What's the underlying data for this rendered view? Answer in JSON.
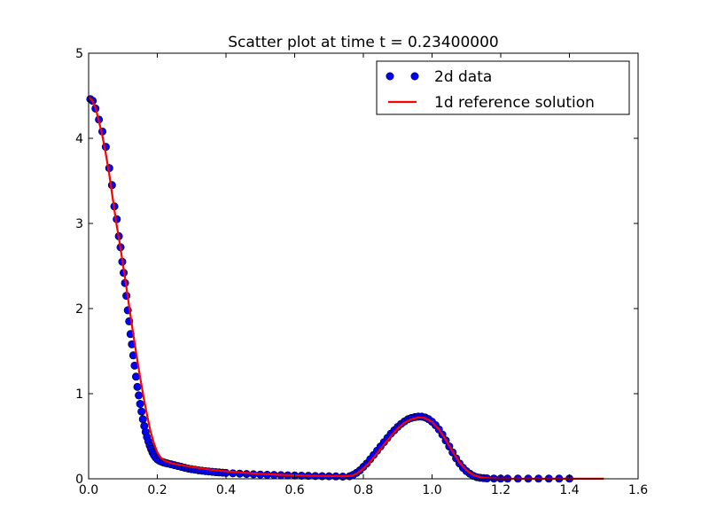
{
  "chart_data": {
    "type": "scatter",
    "title": "Scatter plot at time t =      0.23400000",
    "xlabel": "",
    "ylabel": "",
    "xlim": [
      0.0,
      1.6
    ],
    "ylim": [
      0,
      5
    ],
    "x_ticks": [
      "0.0",
      "0.2",
      "0.4",
      "0.6",
      "0.8",
      "1.0",
      "1.2",
      "1.4",
      "1.6"
    ],
    "y_ticks": [
      "0",
      "1",
      "2",
      "3",
      "4",
      "5"
    ],
    "grid": false,
    "legend_position": "top-right",
    "series": [
      {
        "name": "2d data",
        "kind": "scatter",
        "color": "#0000ff",
        "edge_color": "#000000",
        "x": [
          0.005,
          0.012,
          0.02,
          0.03,
          0.04,
          0.05,
          0.06,
          0.068,
          0.075,
          0.082,
          0.088,
          0.093,
          0.098,
          0.102,
          0.106,
          0.11,
          0.114,
          0.118,
          0.122,
          0.126,
          0.13,
          0.134,
          0.138,
          0.142,
          0.146,
          0.15,
          0.154,
          0.158,
          0.162,
          0.166,
          0.17,
          0.174,
          0.178,
          0.182,
          0.186,
          0.19,
          0.195,
          0.2,
          0.205,
          0.21,
          0.215,
          0.22,
          0.225,
          0.23,
          0.24,
          0.25,
          0.26,
          0.27,
          0.28,
          0.29,
          0.3,
          0.31,
          0.32,
          0.33,
          0.34,
          0.35,
          0.36,
          0.37,
          0.38,
          0.39,
          0.4,
          0.42,
          0.44,
          0.46,
          0.48,
          0.5,
          0.52,
          0.54,
          0.56,
          0.58,
          0.6,
          0.62,
          0.64,
          0.66,
          0.68,
          0.7,
          0.72,
          0.74,
          0.76,
          0.77,
          0.78,
          0.79,
          0.8,
          0.81,
          0.82,
          0.83,
          0.84,
          0.85,
          0.86,
          0.87,
          0.88,
          0.89,
          0.9,
          0.91,
          0.92,
          0.93,
          0.94,
          0.95,
          0.96,
          0.97,
          0.98,
          0.99,
          1.0,
          1.01,
          1.02,
          1.03,
          1.04,
          1.05,
          1.06,
          1.07,
          1.08,
          1.09,
          1.1,
          1.11,
          1.12,
          1.13,
          1.14,
          1.15,
          1.16,
          1.18,
          1.2,
          1.22,
          1.25,
          1.28,
          1.31,
          1.34,
          1.37,
          1.4
        ],
        "y": [
          4.46,
          4.44,
          4.35,
          4.22,
          4.08,
          3.9,
          3.65,
          3.45,
          3.2,
          3.05,
          2.85,
          2.72,
          2.55,
          2.42,
          2.3,
          2.15,
          1.98,
          1.85,
          1.7,
          1.58,
          1.45,
          1.33,
          1.2,
          1.08,
          0.98,
          0.88,
          0.79,
          0.7,
          0.62,
          0.55,
          0.49,
          0.44,
          0.39,
          0.35,
          0.31,
          0.28,
          0.25,
          0.23,
          0.215,
          0.205,
          0.198,
          0.19,
          0.185,
          0.18,
          0.17,
          0.16,
          0.15,
          0.14,
          0.13,
          0.12,
          0.113,
          0.107,
          0.1,
          0.095,
          0.09,
          0.086,
          0.082,
          0.078,
          0.075,
          0.072,
          0.069,
          0.064,
          0.06,
          0.056,
          0.053,
          0.05,
          0.047,
          0.045,
          0.043,
          0.041,
          0.039,
          0.037,
          0.035,
          0.033,
          0.031,
          0.03,
          0.028,
          0.026,
          0.03,
          0.045,
          0.07,
          0.1,
          0.14,
          0.18,
          0.23,
          0.28,
          0.33,
          0.38,
          0.43,
          0.48,
          0.53,
          0.57,
          0.61,
          0.645,
          0.675,
          0.7,
          0.715,
          0.725,
          0.73,
          0.73,
          0.72,
          0.7,
          0.67,
          0.63,
          0.58,
          0.52,
          0.45,
          0.38,
          0.31,
          0.24,
          0.18,
          0.13,
          0.09,
          0.06,
          0.035,
          0.02,
          0.012,
          0.008,
          0.005,
          0.003,
          0.002,
          0.002,
          0.002,
          0.002,
          0.002,
          0.002,
          0.002,
          0.002
        ]
      },
      {
        "name": "1d reference solution",
        "kind": "line",
        "color": "#ff0000",
        "x": [
          0.0,
          0.01,
          0.02,
          0.03,
          0.04,
          0.05,
          0.06,
          0.07,
          0.08,
          0.09,
          0.1,
          0.11,
          0.12,
          0.13,
          0.14,
          0.15,
          0.16,
          0.17,
          0.18,
          0.19,
          0.2,
          0.21,
          0.22,
          0.23,
          0.24,
          0.25,
          0.3,
          0.35,
          0.4,
          0.45,
          0.5,
          0.55,
          0.6,
          0.65,
          0.7,
          0.75,
          0.77,
          0.78,
          0.8,
          0.82,
          0.84,
          0.86,
          0.88,
          0.9,
          0.92,
          0.94,
          0.96,
          0.97,
          0.98,
          1.0,
          1.02,
          1.04,
          1.06,
          1.08,
          1.1,
          1.12,
          1.14,
          1.16,
          1.18,
          1.2,
          1.3,
          1.4,
          1.5
        ],
        "y": [
          4.48,
          4.45,
          4.36,
          4.2,
          4.03,
          3.82,
          3.58,
          3.3,
          3.02,
          2.78,
          2.52,
          2.25,
          1.97,
          1.7,
          1.44,
          1.19,
          0.96,
          0.75,
          0.56,
          0.42,
          0.31,
          0.25,
          0.215,
          0.2,
          0.185,
          0.175,
          0.14,
          0.11,
          0.088,
          0.072,
          0.058,
          0.048,
          0.04,
          0.035,
          0.032,
          0.03,
          0.04,
          0.06,
          0.12,
          0.2,
          0.3,
          0.4,
          0.5,
          0.59,
          0.66,
          0.7,
          0.72,
          0.72,
          0.71,
          0.67,
          0.58,
          0.46,
          0.32,
          0.19,
          0.1,
          0.045,
          0.02,
          0.008,
          0.004,
          0.002,
          0.001,
          0.001,
          0.001
        ]
      }
    ]
  }
}
